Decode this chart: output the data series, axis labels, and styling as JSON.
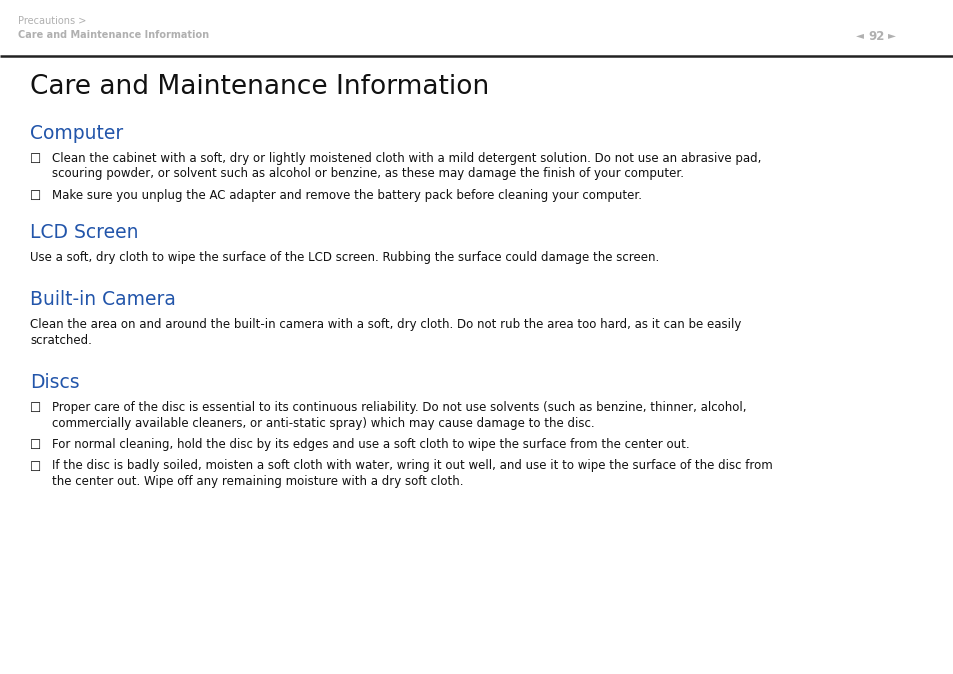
{
  "bg_color": "#ffffff",
  "header_text_color": "#b0b0b0",
  "header_line_color": "#222222",
  "breadcrumb_line1": "Precautions >",
  "breadcrumb_line2": "Care and Maintenance Information",
  "page_num": "92",
  "title": "Care and Maintenance Information",
  "title_color": "#111111",
  "section_color": "#2255aa",
  "body_color": "#111111",
  "sections": [
    {
      "heading": "Computer",
      "type": "bullets",
      "items": [
        "Clean the cabinet with a soft, dry or lightly moistened cloth with a mild detergent solution. Do not use an abrasive pad,\nscouring powder, or solvent such as alcohol or benzine, as these may damage the finish of your computer.",
        "Make sure you unplug the AC adapter and remove the battery pack before cleaning your computer."
      ]
    },
    {
      "heading": "LCD Screen",
      "type": "paragraph",
      "items": [
        "Use a soft, dry cloth to wipe the surface of the LCD screen. Rubbing the surface could damage the screen."
      ]
    },
    {
      "heading": "Built-in Camera",
      "type": "paragraph",
      "items": [
        "Clean the area on and around the built-in camera with a soft, dry cloth. Do not rub the area too hard, as it can be easily\nscratched."
      ]
    },
    {
      "heading": "Discs",
      "type": "bullets",
      "items": [
        "Proper care of the disc is essential to its continuous reliability. Do not use solvents (such as benzine, thinner, alcohol,\ncommercially available cleaners, or anti-static spray) which may cause damage to the disc.",
        "For normal cleaning, hold the disc by its edges and use a soft cloth to wipe the surface from the center out.",
        "If the disc is badly soiled, moisten a soft cloth with water, wring it out well, and use it to wipe the surface of the disc from\nthe center out. Wipe off any remaining moisture with a dry soft cloth."
      ]
    }
  ],
  "figwidth": 9.54,
  "figheight": 6.74,
  "dpi": 100
}
